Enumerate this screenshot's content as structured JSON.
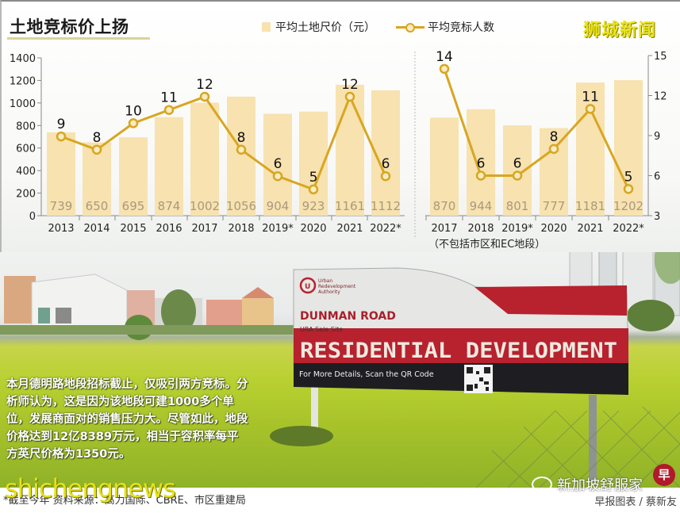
{
  "header": {
    "title": "土地竞标价上扬",
    "watermark": "狮城新闻"
  },
  "legend": {
    "bar_label": "平均土地尺价（元）",
    "line_label": "平均竞标人数"
  },
  "colors": {
    "bar": "#f7e2b0",
    "line": "#d8a620",
    "title_underline": "#d9d49a",
    "watermark": "#e8e41c"
  },
  "chart_data": [
    {
      "type": "bar+line",
      "title": "土地竞标价上扬",
      "categories": [
        "2013",
        "2014",
        "2015",
        "2016",
        "2017",
        "2018",
        "2019*",
        "2020",
        "2021",
        "2022*"
      ],
      "series": [
        {
          "name": "平均土地尺价（元）",
          "type": "bar",
          "axis": "left",
          "values": [
            739,
            650,
            695,
            874,
            1002,
            1056,
            904,
            923,
            1161,
            1112
          ]
        },
        {
          "name": "平均竞标人数",
          "type": "line",
          "axis": "left-secondary",
          "values": [
            9,
            8,
            10,
            11,
            12,
            8,
            6,
            5,
            12,
            6
          ]
        }
      ],
      "y_left": {
        "ticks": [
          0,
          200,
          400,
          600,
          800,
          1000,
          1200,
          1400
        ],
        "ylim": [
          0,
          1400
        ]
      },
      "grid": false
    },
    {
      "type": "bar+line",
      "subtitle": "（不包括市区和EC地段）",
      "categories": [
        "2017",
        "2018",
        "2019*",
        "2020",
        "2021",
        "2022*"
      ],
      "series": [
        {
          "name": "平均土地尺价（元）",
          "type": "bar",
          "values": [
            870,
            944,
            801,
            777,
            1181,
            1202
          ]
        },
        {
          "name": "平均竞标人数",
          "type": "line",
          "axis": "right",
          "values": [
            14,
            6,
            6,
            8,
            11,
            5
          ]
        }
      ],
      "y_right": {
        "ticks": [
          3,
          6,
          9,
          12,
          15
        ],
        "ylim": [
          3,
          15
        ]
      },
      "grid": false
    }
  ],
  "left_axis_ticks": [
    "0",
    "200",
    "400",
    "600",
    "800",
    "1000",
    "1200",
    "1400"
  ],
  "right_axis_ticks": [
    "3",
    "6",
    "9",
    "12",
    "15"
  ],
  "left_chart": {
    "years": [
      "2013",
      "2014",
      "2015",
      "2016",
      "2017",
      "2018",
      "2019*",
      "2020",
      "2021",
      "2022*"
    ],
    "prices": [
      "739",
      "650",
      "695",
      "874",
      "1002",
      "1056",
      "904",
      "923",
      "1161",
      "1112"
    ],
    "bidders": [
      "9",
      "8",
      "10",
      "11",
      "12",
      "8",
      "6",
      "5",
      "12",
      "6"
    ]
  },
  "right_chart": {
    "years": [
      "2017",
      "2018",
      "2019*",
      "2020",
      "2021",
      "2022*"
    ],
    "prices": [
      "870",
      "944",
      "801",
      "777",
      "1181",
      "1202"
    ],
    "bidders": [
      "14",
      "6",
      "6",
      "8",
      "11",
      "5"
    ],
    "note": "（不包括市区和EC地段）"
  },
  "photo": {
    "sign": {
      "org_name": "Urban Redevelopment Authority",
      "road": "DUNMAN ROAD",
      "site_type": "URA Sale Site",
      "headline": "RESIDENTIAL DEVELOPMENT",
      "qr_prompt": "For More Details, Scan the QR Code"
    },
    "caption": "本月德明路地段招标截止，仅吸引两方竞标。分析师认为，这是因为该地段可建1000多个单位，发展商面对的销售压力大。尽管如此，地段价格达到12亿8389万元，相当于容积率每平方英尺价格为1350元。"
  },
  "footer": {
    "source": "*截至今年   资料来源：高力国际、CBRE、市区重建局",
    "credit": "早报图表 / 蔡新友",
    "watermark_bottom": "shichengnews",
    "wechat_account": "新加坡舒服家",
    "logo_char": "早"
  }
}
